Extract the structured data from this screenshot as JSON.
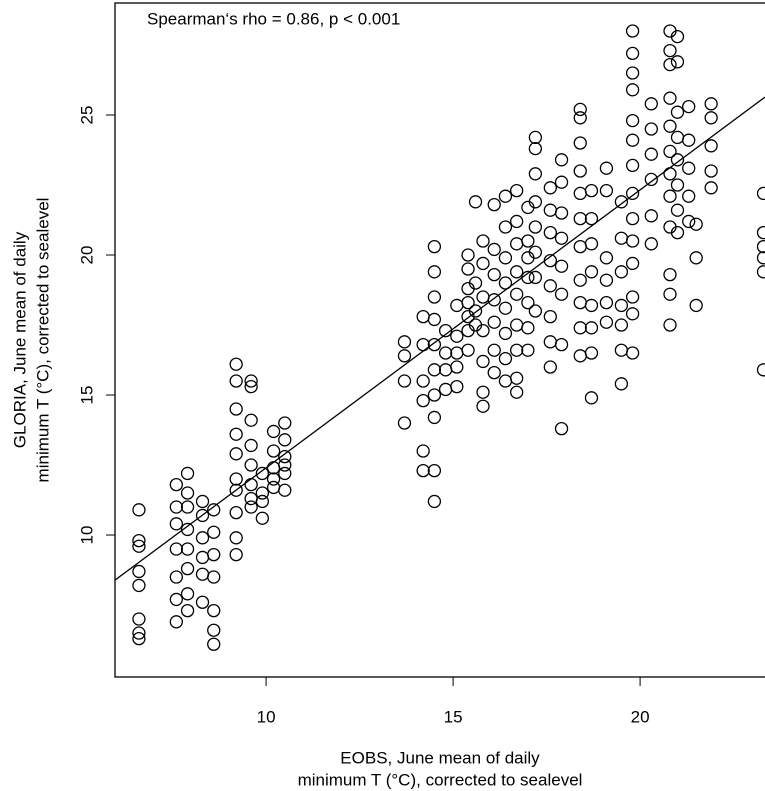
{
  "chart_data": {
    "type": "scatter",
    "annotation": "Spearman‘s rho = 0.86, p < 0.001",
    "xlabel": [
      "EOBS, June mean of daily",
      "minimum T (°C), corrected to sealevel"
    ],
    "ylabel": [
      "GLORIA, June mean of daily",
      "minimum T (°C), corrected to sealevel"
    ],
    "xlim": [
      5.96,
      23.34
    ],
    "ylim": [
      4.93,
      29.0
    ],
    "xticks": [
      10,
      15,
      20
    ],
    "yticks": [
      10,
      15,
      20,
      25
    ],
    "color": "#000000",
    "trend_line": {
      "x": [
        5.96,
        23.34
      ],
      "y": [
        8.39,
        25.64
      ]
    },
    "x": [
      6.6,
      6.6,
      6.6,
      6.6,
      6.6,
      6.6,
      6.6,
      6.6,
      7.6,
      7.6,
      7.6,
      7.6,
      7.6,
      7.6,
      7.6,
      7.9,
      7.9,
      7.9,
      7.9,
      7.9,
      7.9,
      7.9,
      7.9,
      8.3,
      8.3,
      8.3,
      8.3,
      8.3,
      8.3,
      8.6,
      8.6,
      8.6,
      8.6,
      8.6,
      8.6,
      8.6,
      9.2,
      9.2,
      9.2,
      9.2,
      9.2,
      9.2,
      9.2,
      9.2,
      9.2,
      9.2,
      9.6,
      9.6,
      9.6,
      9.6,
      9.6,
      9.6,
      9.6,
      9.6,
      9.9,
      9.9,
      9.9,
      9.9,
      10.2,
      10.2,
      10.2,
      10.2,
      10.2,
      10.5,
      10.5,
      10.5,
      10.5,
      10.5,
      10.5,
      13.7,
      13.7,
      13.7,
      13.7,
      14.2,
      14.2,
      14.2,
      14.2,
      14.2,
      14.2,
      14.5,
      14.5,
      14.5,
      14.5,
      14.5,
      14.5,
      14.5,
      14.5,
      14.5,
      14.5,
      14.8,
      14.8,
      14.8,
      14.8,
      15.1,
      15.1,
      15.1,
      15.1,
      15.1,
      15.4,
      15.4,
      15.4,
      15.4,
      15.4,
      15.4,
      15.4,
      15.6,
      15.6,
      15.6,
      15.6,
      15.8,
      15.8,
      15.8,
      15.8,
      15.8,
      15.8,
      15.8,
      16.1,
      16.1,
      16.1,
      16.1,
      16.1,
      16.1,
      16.1,
      16.4,
      16.4,
      16.4,
      16.4,
      16.4,
      16.4,
      16.4,
      16.4,
      16.7,
      16.7,
      16.7,
      16.7,
      16.7,
      16.7,
      16.7,
      16.7,
      16.7,
      17.0,
      17.0,
      17.0,
      17.0,
      17.0,
      17.0,
      17.0,
      17.2,
      17.2,
      17.2,
      17.2,
      17.2,
      17.2,
      17.2,
      17.2,
      17.6,
      17.6,
      17.6,
      17.6,
      17.6,
      17.6,
      17.6,
      17.6,
      17.9,
      17.9,
      17.9,
      17.9,
      17.9,
      17.9,
      17.9,
      17.9,
      18.4,
      18.4,
      18.4,
      18.4,
      18.4,
      18.4,
      18.4,
      18.4,
      18.4,
      18.4,
      18.4,
      18.7,
      18.7,
      18.7,
      18.7,
      18.7,
      18.7,
      18.7,
      18.7,
      19.1,
      19.1,
      19.1,
      19.1,
      19.1,
      19.1,
      19.5,
      19.5,
      19.5,
      19.5,
      19.5,
      19.5,
      19.5,
      19.8,
      19.8,
      19.8,
      19.8,
      19.8,
      19.8,
      19.8,
      19.8,
      19.8,
      19.8,
      19.8,
      19.8,
      19.8,
      19.8,
      20.3,
      20.3,
      20.3,
      20.3,
      20.3,
      20.3,
      20.8,
      20.8,
      20.8,
      20.8,
      20.8,
      20.8,
      20.8,
      20.8,
      20.8,
      20.8,
      20.8,
      20.8,
      21.0,
      21.0,
      21.0,
      21.0,
      21.0,
      21.0,
      21.0,
      21.0,
      21.3,
      21.3,
      21.3,
      21.3,
      21.3,
      21.5,
      21.5,
      21.5,
      21.9,
      21.9,
      21.9,
      21.9,
      21.9,
      23.3,
      23.3,
      23.3,
      23.3,
      23.3,
      23.3
    ],
    "y": [
      10.9,
      9.8,
      9.6,
      8.7,
      8.2,
      7.0,
      6.5,
      6.3,
      11.8,
      11.0,
      10.4,
      9.5,
      8.5,
      7.7,
      6.9,
      12.2,
      11.5,
      11.0,
      10.2,
      9.5,
      8.8,
      7.9,
      7.3,
      11.2,
      10.7,
      9.9,
      9.2,
      8.6,
      7.6,
      10.9,
      10.1,
      9.3,
      8.5,
      7.3,
      6.6,
      6.1,
      16.1,
      15.5,
      14.5,
      13.6,
      12.9,
      12.0,
      11.6,
      10.8,
      9.9,
      9.3,
      15.5,
      15.3,
      14.1,
      13.2,
      12.5,
      11.8,
      11.3,
      11.0,
      12.2,
      11.5,
      11.2,
      10.6,
      13.7,
      13.0,
      12.4,
      12.0,
      11.7,
      14.0,
      13.4,
      12.8,
      12.5,
      12.2,
      11.6,
      16.9,
      16.4,
      15.5,
      14.0,
      17.8,
      16.8,
      15.5,
      14.8,
      13.0,
      12.3,
      20.3,
      19.4,
      18.5,
      17.7,
      16.8,
      15.9,
      15.0,
      14.2,
      12.3,
      11.2,
      17.3,
      16.5,
      15.9,
      15.2,
      18.2,
      17.1,
      16.5,
      16.0,
      15.3,
      20.0,
      19.5,
      18.8,
      18.3,
      17.8,
      17.3,
      16.6,
      21.9,
      19.0,
      18.0,
      17.5,
      20.5,
      19.7,
      18.5,
      17.3,
      16.2,
      15.1,
      14.6,
      21.8,
      20.2,
      19.3,
      18.4,
      17.6,
      16.6,
      15.8,
      22.1,
      21.0,
      19.9,
      19.0,
      18.1,
      17.2,
      16.3,
      15.5,
      22.3,
      21.2,
      20.4,
      19.4,
      18.6,
      17.5,
      16.6,
      15.6,
      15.1,
      21.7,
      20.5,
      19.9,
      19.2,
      18.3,
      17.4,
      16.6,
      24.2,
      23.8,
      22.9,
      21.9,
      21.0,
      20.1,
      19.2,
      18.0,
      22.4,
      21.6,
      20.8,
      19.8,
      18.9,
      17.8,
      16.9,
      16.0,
      23.4,
      22.6,
      21.5,
      20.6,
      19.6,
      18.6,
      16.8,
      13.8,
      25.2,
      24.9,
      24.0,
      23.0,
      22.2,
      21.3,
      20.3,
      19.1,
      18.3,
      17.4,
      16.4,
      22.3,
      21.3,
      20.4,
      19.4,
      18.2,
      17.4,
      16.5,
      14.9,
      23.1,
      22.3,
      19.9,
      19.1,
      18.3,
      17.6,
      21.9,
      20.6,
      19.4,
      18.2,
      17.5,
      16.6,
      15.4,
      28.0,
      27.2,
      26.5,
      25.9,
      24.8,
      24.1,
      23.2,
      22.2,
      21.3,
      20.5,
      19.7,
      18.5,
      17.9,
      16.5,
      25.4,
      24.5,
      23.6,
      22.7,
      21.4,
      20.4,
      28.0,
      27.3,
      26.8,
      25.6,
      24.6,
      23.7,
      22.9,
      22.1,
      21.0,
      19.3,
      18.6,
      17.5,
      27.8,
      26.9,
      25.1,
      24.2,
      23.4,
      22.5,
      21.6,
      20.8,
      25.3,
      24.1,
      23.1,
      22.1,
      21.2,
      21.1,
      19.9,
      18.2,
      25.4,
      24.9,
      23.9,
      23.0,
      22.4,
      22.2,
      20.8,
      20.3,
      19.9,
      19.4,
      15.9
    ]
  }
}
